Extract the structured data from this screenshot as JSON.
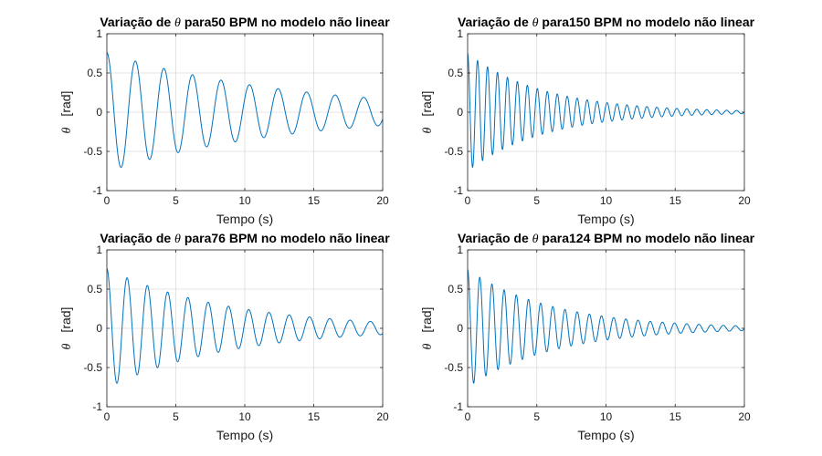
{
  "chart_data": [
    {
      "type": "line",
      "title_prefix": "Variação de ",
      "title_symbol": "θ",
      "title_suffix": " para50 BPM no modelo não linear",
      "xlabel": "Tempo (s)",
      "ylabel_symbol": "θ",
      "ylabel_unit": "[rad]",
      "xlim": [
        0,
        20
      ],
      "ylim": [
        -1,
        1
      ],
      "xticks": [
        "0",
        "5",
        "10",
        "15",
        "20"
      ],
      "yticks": [
        "-1",
        "-0.5",
        "0",
        "0.5",
        "1"
      ],
      "grid": true,
      "line_color": "#0072bd",
      "signal": {
        "amplitude_start": 0.76,
        "amplitude_end": 0.17,
        "period_s": 2.07
      }
    },
    {
      "type": "line",
      "title_prefix": "Variação de ",
      "title_symbol": "θ",
      "title_suffix": " para150 BPM no modelo não linear",
      "xlabel": "Tempo (s)",
      "ylabel_symbol": "θ",
      "ylabel_unit": "[rad]",
      "xlim": [
        0,
        20
      ],
      "ylim": [
        -1,
        1
      ],
      "xticks": [
        "0",
        "5",
        "10",
        "15",
        "20"
      ],
      "yticks": [
        "-1",
        "-0.5",
        "0",
        "0.5",
        "1"
      ],
      "grid": true,
      "line_color": "#0072bd",
      "signal": {
        "amplitude_start": 0.75,
        "amplitude_end": 0.02,
        "period_s": 0.72
      }
    },
    {
      "type": "line",
      "title_prefix": "Variação de ",
      "title_symbol": "θ",
      "title_suffix": " para76 BPM no modelo não linear",
      "xlabel": "Tempo (s)",
      "ylabel_symbol": "θ",
      "ylabel_unit": "[rad]",
      "xlim": [
        0,
        20
      ],
      "ylim": [
        -1,
        1
      ],
      "xticks": [
        "0",
        "5",
        "10",
        "15",
        "20"
      ],
      "yticks": [
        "-1",
        "-0.5",
        "0",
        "0.5",
        "1"
      ],
      "grid": true,
      "line_color": "#0072bd",
      "signal": {
        "amplitude_start": 0.76,
        "amplitude_end": 0.08,
        "period_s": 1.47
      }
    },
    {
      "type": "line",
      "title_prefix": "Variação de ",
      "title_symbol": "θ",
      "title_suffix": " para124 BPM no modelo não linear",
      "xlabel": "Tempo (s)",
      "ylabel_symbol": "θ",
      "ylabel_unit": "[rad]",
      "xlim": [
        0,
        20
      ],
      "ylim": [
        -1,
        1
      ],
      "xticks": [
        "0",
        "5",
        "10",
        "15",
        "20"
      ],
      "yticks": [
        "-1",
        "-0.5",
        "0",
        "0.5",
        "1"
      ],
      "grid": true,
      "line_color": "#0072bd",
      "signal": {
        "amplitude_start": 0.75,
        "amplitude_end": 0.03,
        "period_s": 0.88
      }
    }
  ]
}
